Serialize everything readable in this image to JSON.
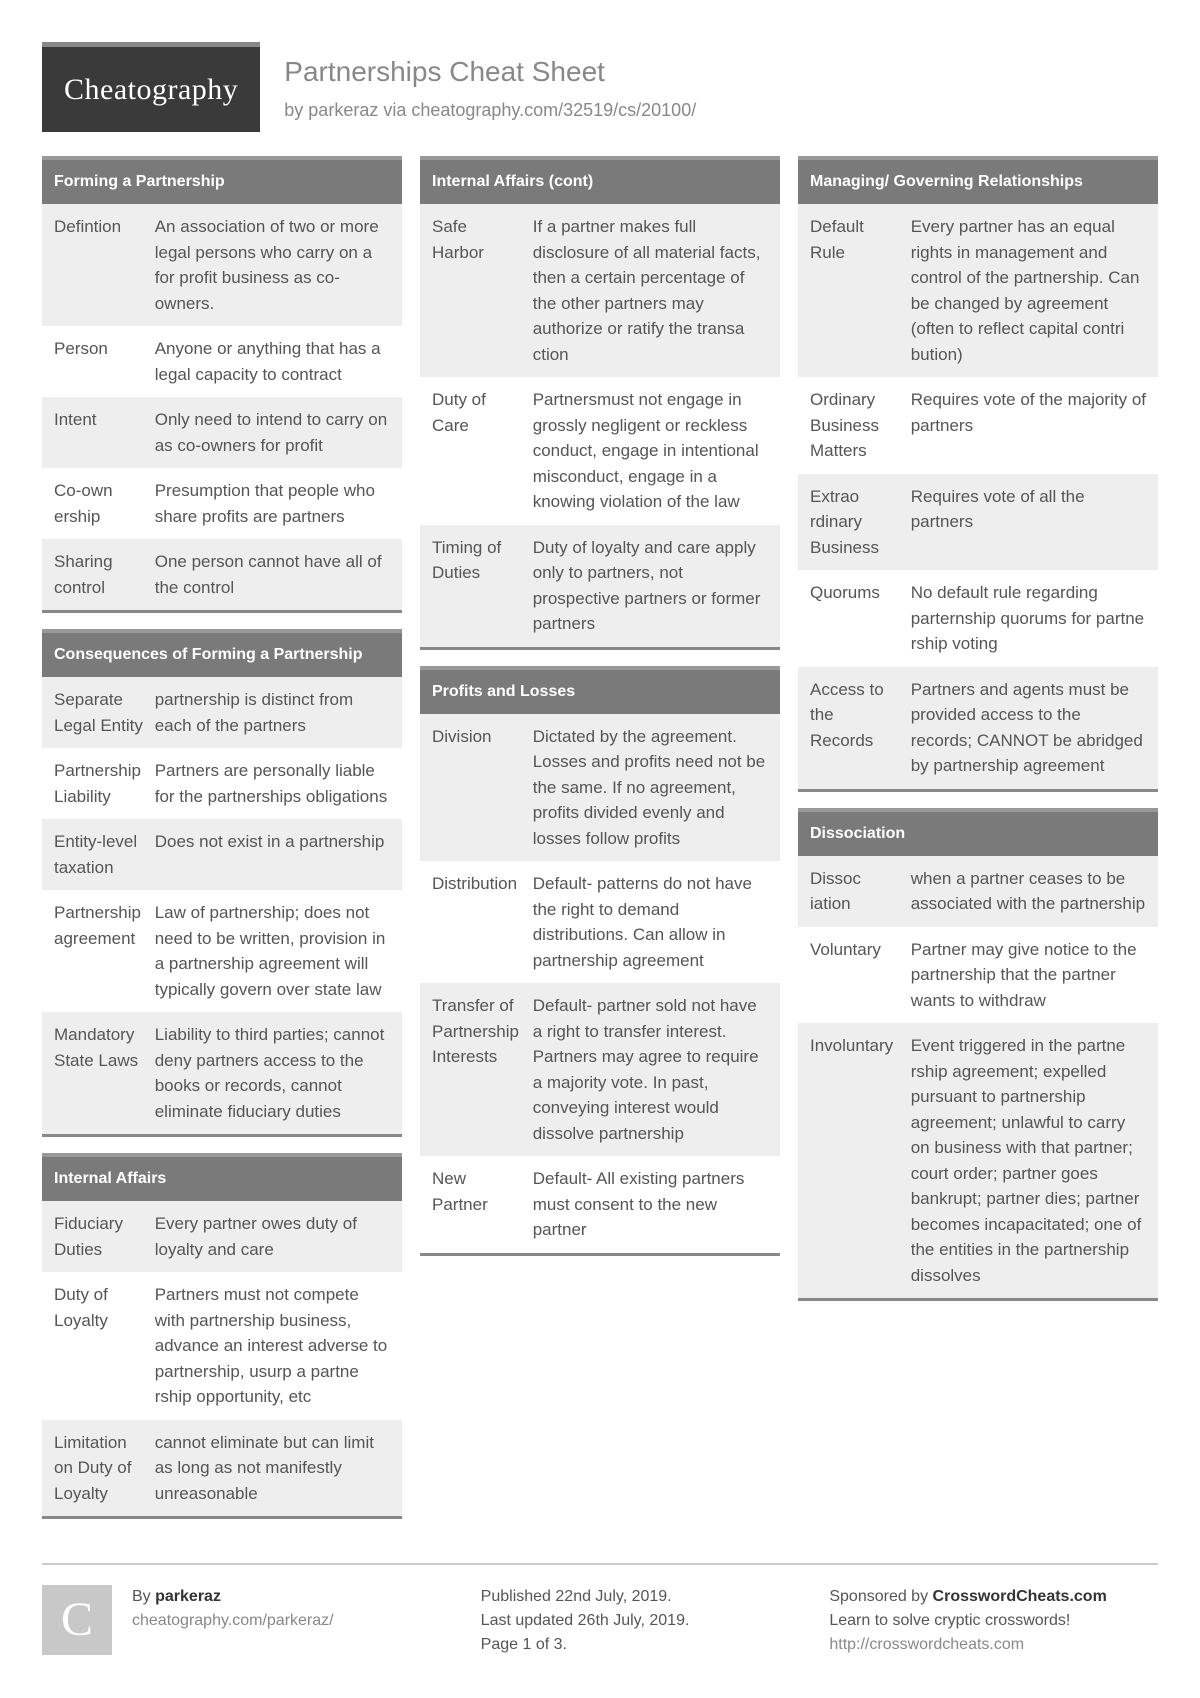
{
  "brand": "Cheatography",
  "title": "Partnerships Cheat Sheet",
  "byline_prefix": "by ",
  "author": "parkeraz",
  "byline_via": " via ",
  "url": "cheatography.com/32519/cs/20100/",
  "columns": [
    [
      {
        "title": "Forming a Partnership",
        "rows": [
          {
            "term": "Defintion",
            "def": "An association of two or more legal persons who carry on a for profit business as co-owners."
          },
          {
            "term": "Person",
            "def": "Anyone or anything that has a legal capacity to contract"
          },
          {
            "term": "Intent",
            "def": "Only need to intend to carry on as co-owners for profit"
          },
          {
            "term": "Co-own​ership",
            "def": "Presumption that people who share profits are partners"
          },
          {
            "term": "Sharing control",
            "def": "One person cannot have all of the control"
          }
        ]
      },
      {
        "title": "Consequences of Forming a Partnership",
        "rows": [
          {
            "term": "Separate Legal Entity",
            "def": "partnership is distinct from each of the partners"
          },
          {
            "term": "Partne​rship Liability",
            "def": "Partners are personally liable for the partnerships obliga​tions"
          },
          {
            "term": "Entity-​level taxation",
            "def": "Does not exist in a partne​rship"
          },
          {
            "term": "Partne​rship agreement",
            "def": "Law of partnership; does not need to be written, provision in a partnership agreement will typically govern over state law"
          },
          {
            "term": "Mandatory State Laws",
            "def": "Liability to third parties; cannot deny partners access to the books or records, cannot eliminate fiduciary duties"
          }
        ]
      },
      {
        "title": "Internal Affairs",
        "rows": [
          {
            "term": "Fiduciary Duties",
            "def": "Every partner owes duty of loyalty and care"
          },
          {
            "term": "Duty of Loyalty",
            "def": "Partners must not compete with partnership business, advance an interest adverse to partnership, usurp a partne​rship opportunity, etc"
          },
          {
            "term": "Limitation on Duty of Loyalty",
            "def": "cannot eliminate but can limit as long as not manifestly unreasonable"
          }
        ]
      }
    ],
    [
      {
        "title": "Internal Affairs (cont)",
        "rows": [
          {
            "term": "Safe Harbor",
            "def": "If a partner makes full disclosure of all material facts, then a certain percentage of the other partners may authorize or ratify the transa​ction"
          },
          {
            "term": "Duty of Care",
            "def": "Partnersmust not engage in grossly negligent or reckless conduct, engage in intentional misconduct, engage in a knowing violation of the law"
          },
          {
            "term": "Timing of Duties",
            "def": "Duty of loyalty and care apply only to partners, not prospective partners or former partners"
          }
        ]
      },
      {
        "title": "Profits and Losses",
        "rows": [
          {
            "term": "Division",
            "def": "Dictated by the agreement. Losses and profits need not be the same. If no agreement, profits divided evenly and losses follow profits"
          },
          {
            "term": "Distri​bution",
            "def": "Default- patterns do not have the right to demand distributions. Can allow in partnership agreement"
          },
          {
            "term": "Transfer of Partne​rship Interests",
            "def": "Default- partner sold not have a right to transfer interest. Partners may agree to require a majority vote. In past, conveying interest would dissolve partne​rship"
          },
          {
            "term": "New Partner",
            "def": "Default- All existing partners must consent to the new partner"
          }
        ]
      }
    ],
    [
      {
        "title": "Managing/ Governing Relationships",
        "rows": [
          {
            "term": "Default Rule",
            "def": "Every partner has an equal rights in management and control of the partnership. Can be changed by agreement (often to reflect capital contri​bution)"
          },
          {
            "term": "Ordinary Business Matters",
            "def": "Requires vote of the majority of partners"
          },
          {
            "term": "Extrao​rdinary Business",
            "def": "Requires vote of all the partners"
          },
          {
            "term": "Quorums",
            "def": "No default rule regarding parternship quorums for partne​rship voting"
          },
          {
            "term": "Access to the Records",
            "def": "Partners and agents must be provided access to the records; CANNOT be abridged by partnership agreement"
          }
        ]
      },
      {
        "title": "Dissociation",
        "rows": [
          {
            "term": "Dissoc​iation",
            "def": "when a partner ceases to be associated with the partnership"
          },
          {
            "term": "Voluntary",
            "def": "Partner may give notice to the partnership that the partner wants to withdraw"
          },
          {
            "term": "Involu​ntary",
            "def": "Event triggered in the partne​rship agreement; expelled pursuant to partnership agreement; unlawful to carry on business with that partner; court order; partner goes bankrupt; partner dies; partner becomes incapacitated; one of the entities in the partnership dissolves"
          }
        ]
      }
    ]
  ],
  "footer": {
    "avatar_letter": "C",
    "by_label": "By ",
    "by_name": "parkeraz",
    "by_url": "cheatography.com/parkeraz/",
    "published": "Published 22nd July, 2019.",
    "updated": "Last updated 26th July, 2019.",
    "page": "Page 1 of 3.",
    "sponsor_label": "Sponsored by ",
    "sponsor_name": "CrosswordCheats.com",
    "sponsor_tag": "Learn to solve cryptic crosswords!",
    "sponsor_url": "http://crosswordcheats.com"
  }
}
